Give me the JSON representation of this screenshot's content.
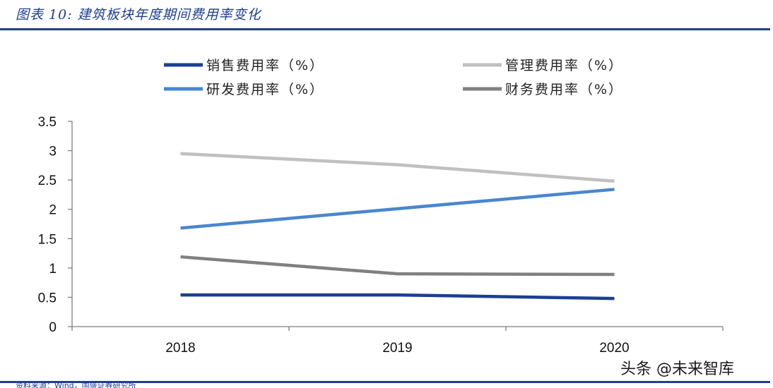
{
  "figure": {
    "title": "图表 10:  建筑板块年度期间费用率变化",
    "source_note": "资料来源：Wind，国盛证券研究所",
    "watermark": "头条 @未来智库"
  },
  "chart_data": {
    "type": "line",
    "title": "",
    "xlabel": "",
    "ylabel": "",
    "categories": [
      "2018",
      "2019",
      "2020"
    ],
    "ylim": [
      0,
      3.5
    ],
    "yticks": [
      0,
      0.5,
      1,
      1.5,
      2,
      2.5,
      3,
      3.5
    ],
    "ytick_labels": [
      "0",
      "0.5",
      "1",
      "1.5",
      "2",
      "2.5",
      "3",
      "3.5"
    ],
    "grid": false,
    "legend_position": "top",
    "series": [
      {
        "name": "销售费用率（%）",
        "values": [
          0.54,
          0.54,
          0.48
        ],
        "color": "#1a3f95"
      },
      {
        "name": "管理费用率（%）",
        "values": [
          2.95,
          2.76,
          2.48
        ],
        "color": "#c0c0c0"
      },
      {
        "name": "研发费用率（%）",
        "values": [
          1.68,
          2.01,
          2.34
        ],
        "color": "#4a86cf"
      },
      {
        "name": "财务费用率（%）",
        "values": [
          1.19,
          0.9,
          0.89
        ],
        "color": "#808080"
      }
    ]
  }
}
